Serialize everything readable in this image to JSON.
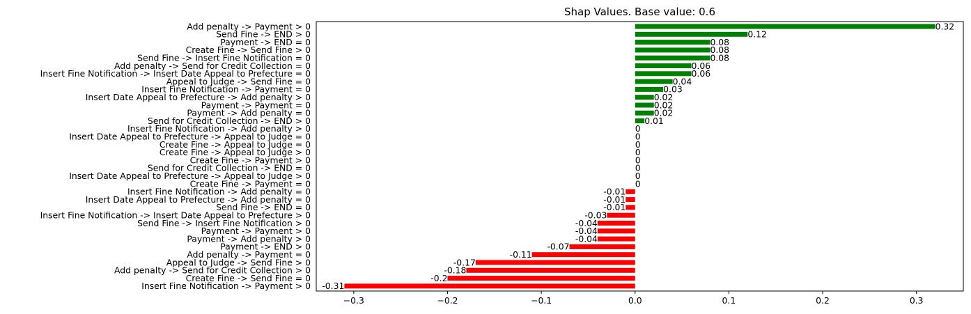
{
  "chart_data": {
    "type": "bar",
    "orientation": "horizontal",
    "title": "Shap Values. Base value: 0.6",
    "xlabel": "",
    "ylabel": "",
    "xlim": [
      -0.34,
      0.35
    ],
    "xticks": [
      -0.3,
      -0.2,
      -0.1,
      0.0,
      0.1,
      0.2,
      0.3
    ],
    "xtick_labels": [
      "−0.3",
      "−0.2",
      "−0.1",
      "0.0",
      "0.1",
      "0.2",
      "0.3"
    ],
    "grid": false,
    "legend": "none",
    "colors": {
      "positive": "#008000",
      "negative": "#ff0000"
    },
    "bars": [
      {
        "label": "Add penalty -> Payment > 0",
        "value": 0.32,
        "value_label": "0.32"
      },
      {
        "label": "Send Fine -> END > 0",
        "value": 0.12,
        "value_label": "0.12"
      },
      {
        "label": "Payment -> END = 0",
        "value": 0.08,
        "value_label": "0.08"
      },
      {
        "label": "Create Fine -> Send Fine > 0",
        "value": 0.08,
        "value_label": "0.08"
      },
      {
        "label": "Send Fine -> Insert Fine Notification = 0",
        "value": 0.08,
        "value_label": "0.08"
      },
      {
        "label": "Add penalty -> Send for Credit Collection = 0",
        "value": 0.06,
        "value_label": "0.06"
      },
      {
        "label": "Insert Fine Notification -> Insert Date Appeal to Prefecture = 0",
        "value": 0.06,
        "value_label": "0.06"
      },
      {
        "label": "Appeal to Judge -> Send Fine = 0",
        "value": 0.04,
        "value_label": "0.04"
      },
      {
        "label": "Insert Fine Notification -> Payment = 0",
        "value": 0.03,
        "value_label": "0.03"
      },
      {
        "label": "Insert Date Appeal to Prefecture -> Add penalty > 0",
        "value": 0.02,
        "value_label": "0.02"
      },
      {
        "label": "Payment -> Payment = 0",
        "value": 0.02,
        "value_label": "0.02"
      },
      {
        "label": "Payment -> Add penalty = 0",
        "value": 0.02,
        "value_label": "0.02"
      },
      {
        "label": "Send for Credit Collection -> END > 0",
        "value": 0.01,
        "value_label": "0.01"
      },
      {
        "label": "Insert Fine Notification -> Add penalty > 0",
        "value": 0,
        "value_label": "0"
      },
      {
        "label": "Insert Date Appeal to Prefecture -> Appeal to Judge = 0",
        "value": 0,
        "value_label": "0"
      },
      {
        "label": "Create Fine -> Appeal to Judge = 0",
        "value": 0,
        "value_label": "0"
      },
      {
        "label": "Create Fine -> Appeal to Judge > 0",
        "value": 0,
        "value_label": "0"
      },
      {
        "label": "Create Fine -> Payment > 0",
        "value": 0,
        "value_label": "0"
      },
      {
        "label": "Send for Credit Collection -> END = 0",
        "value": 0,
        "value_label": "0"
      },
      {
        "label": "Insert Date Appeal to Prefecture -> Appeal to Judge > 0",
        "value": 0,
        "value_label": "0"
      },
      {
        "label": "Create Fine -> Payment = 0",
        "value": 0,
        "value_label": "0"
      },
      {
        "label": "Insert Fine Notification -> Add penalty = 0",
        "value": -0.01,
        "value_label": "-0.01"
      },
      {
        "label": "Insert Date Appeal to Prefecture -> Add penalty = 0",
        "value": -0.01,
        "value_label": "-0.01"
      },
      {
        "label": "Send Fine -> END = 0",
        "value": -0.01,
        "value_label": "-0.01"
      },
      {
        "label": "Insert Fine Notification -> Insert Date Appeal to Prefecture > 0",
        "value": -0.03,
        "value_label": "-0.03"
      },
      {
        "label": "Send Fine -> Insert Fine Notification > 0",
        "value": -0.04,
        "value_label": "-0.04"
      },
      {
        "label": "Payment -> Payment > 0",
        "value": -0.04,
        "value_label": "-0.04"
      },
      {
        "label": "Payment -> Add penalty > 0",
        "value": -0.04,
        "value_label": "-0.04"
      },
      {
        "label": "Payment -> END > 0",
        "value": -0.07,
        "value_label": "-0.07"
      },
      {
        "label": "Add penalty -> Payment = 0",
        "value": -0.11,
        "value_label": "-0.11"
      },
      {
        "label": "Appeal to Judge -> Send Fine > 0",
        "value": -0.17,
        "value_label": "-0.17"
      },
      {
        "label": "Add penalty -> Send for Credit Collection > 0",
        "value": -0.18,
        "value_label": "-0.18"
      },
      {
        "label": "Create Fine -> Send Fine = 0",
        "value": -0.2,
        "value_label": "-0.2"
      },
      {
        "label": "Insert Fine Notification -> Payment > 0",
        "value": -0.31,
        "value_label": "-0.31"
      }
    ]
  }
}
